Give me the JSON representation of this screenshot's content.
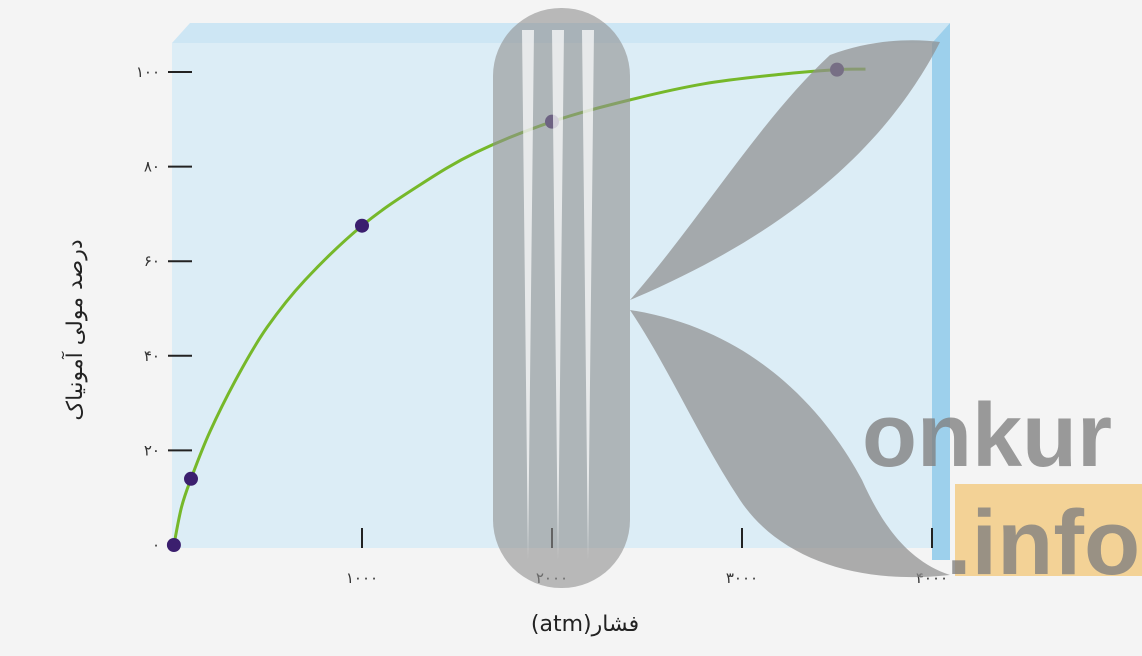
{
  "chart_data": {
    "type": "line",
    "xlabel": "فشار(atm)",
    "ylabel": "درصد مولی آمونیاک",
    "xlim": [
      0,
      4000
    ],
    "ylim": [
      0,
      100
    ],
    "x_ticks": [
      {
        "value": 1000,
        "label": "۱۰۰۰"
      },
      {
        "value": 2000,
        "label": "۲۰۰۰"
      },
      {
        "value": 3000,
        "label": "۳۰۰۰"
      },
      {
        "value": 4000,
        "label": "۴۰۰۰"
      }
    ],
    "y_ticks": [
      {
        "value": 0,
        "label": "۰"
      },
      {
        "value": 20,
        "label": "۲۰"
      },
      {
        "value": 40,
        "label": "۴۰"
      },
      {
        "value": 60,
        "label": "۶۰"
      },
      {
        "value": 80,
        "label": "۸۰"
      },
      {
        "value": 100,
        "label": "۱۰۰"
      }
    ],
    "points": [
      {
        "x": 10,
        "y": 0
      },
      {
        "x": 100,
        "y": 14
      },
      {
        "x": 1000,
        "y": 67.5
      },
      {
        "x": 2000,
        "y": 89.5
      },
      {
        "x": 3500,
        "y": 100.5
      }
    ],
    "curve": [
      {
        "x": 10,
        "y": 0
      },
      {
        "x": 50,
        "y": 8
      },
      {
        "x": 100,
        "y": 14
      },
      {
        "x": 200,
        "y": 24
      },
      {
        "x": 350,
        "y": 36
      },
      {
        "x": 500,
        "y": 46
      },
      {
        "x": 700,
        "y": 56
      },
      {
        "x": 1000,
        "y": 67.5
      },
      {
        "x": 1300,
        "y": 76
      },
      {
        "x": 1600,
        "y": 83
      },
      {
        "x": 2000,
        "y": 89.5
      },
      {
        "x": 2400,
        "y": 94
      },
      {
        "x": 2800,
        "y": 97.5
      },
      {
        "x": 3200,
        "y": 99.5
      },
      {
        "x": 3500,
        "y": 100.5
      },
      {
        "x": 3650,
        "y": 100.6
      }
    ],
    "grid": false,
    "colors": {
      "curve": "#76b82a",
      "point": "#3b1f6e",
      "plot_background": "#dcedf6",
      "panel_edge": "#9dd0ec"
    }
  },
  "watermark": {
    "line1": "onkur",
    "line2": ".info",
    "colors": {
      "mark": "#8f8f8f",
      "accent": "#f2bb57",
      "text": "#808080"
    }
  }
}
